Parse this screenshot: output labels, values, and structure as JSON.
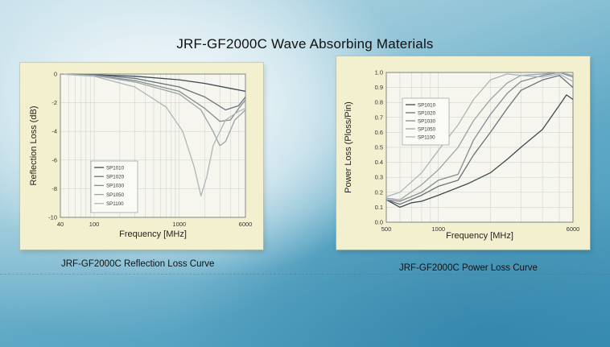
{
  "title": "JRF-GF2000C Wave Absorbing Materials",
  "captions": {
    "left": "JRF-GF2000C  Reflection Loss Curve",
    "right": "JRF-GF2000C Power Loss Curve"
  },
  "colors": {
    "panel_bg": "#f3f0cf",
    "plot_bg": "#f6f5ee",
    "grid": "#c9cfc9",
    "series": [
      "#3e4a52",
      "#68737a",
      "#838d93",
      "#9ba4a9",
      "#aeb6ba"
    ]
  },
  "chart_data": [
    {
      "type": "line",
      "title": "",
      "xlabel": "Frequency [MHz]",
      "ylabel": "Reflection Loss (dB)",
      "xscale": "log",
      "xlim": [
        40,
        6000
      ],
      "ylim": [
        -10,
        0
      ],
      "xticks": [
        {
          "value": 40,
          "label": "40"
        },
        {
          "value": 100,
          "label": "100"
        },
        {
          "value": 1000,
          "label": "1000"
        },
        {
          "value": 6000,
          "label": "6000"
        }
      ],
      "yticks": [
        0,
        -2,
        -4,
        -6,
        -8,
        -10
      ],
      "grid": true,
      "legend": {
        "position": "center-left",
        "entries": [
          "SP1010",
          "SP1020",
          "SP1030",
          "SP1050",
          "SP1100"
        ]
      },
      "series": [
        {
          "name": "SP1010",
          "points": [
            [
              40,
              0
            ],
            [
              100,
              -0.05
            ],
            [
              300,
              -0.15
            ],
            [
              1000,
              -0.4
            ],
            [
              2000,
              -0.65
            ],
            [
              4000,
              -1.0
            ],
            [
              6000,
              -1.2
            ]
          ]
        },
        {
          "name": "SP1020",
          "points": [
            [
              40,
              0
            ],
            [
              100,
              -0.05
            ],
            [
              300,
              -0.3
            ],
            [
              1000,
              -0.9
            ],
            [
              2000,
              -1.6
            ],
            [
              3500,
              -2.5
            ],
            [
              5000,
              -2.2
            ],
            [
              6000,
              -1.6
            ]
          ]
        },
        {
          "name": "SP1030",
          "points": [
            [
              40,
              0
            ],
            [
              100,
              -0.1
            ],
            [
              300,
              -0.45
            ],
            [
              1000,
              -1.2
            ],
            [
              2000,
              -2.4
            ],
            [
              3000,
              -3.3
            ],
            [
              4000,
              -3.2
            ],
            [
              5000,
              -2.4
            ],
            [
              6000,
              -1.8
            ]
          ]
        },
        {
          "name": "SP1050",
          "points": [
            [
              40,
              0
            ],
            [
              100,
              -0.1
            ],
            [
              300,
              -0.55
            ],
            [
              1000,
              -1.4
            ],
            [
              1800,
              -2.5
            ],
            [
              2500,
              -4.0
            ],
            [
              3000,
              -5.0
            ],
            [
              3500,
              -4.7
            ],
            [
              4500,
              -3.2
            ],
            [
              6000,
              -2.5
            ]
          ]
        },
        {
          "name": "SP1100",
          "points": [
            [
              40,
              0
            ],
            [
              100,
              -0.15
            ],
            [
              300,
              -0.9
            ],
            [
              700,
              -2.3
            ],
            [
              1100,
              -4.0
            ],
            [
              1500,
              -6.5
            ],
            [
              1800,
              -8.5
            ],
            [
              2100,
              -7.2
            ],
            [
              2500,
              -5.0
            ],
            [
              3500,
              -3.2
            ],
            [
              5000,
              -2.6
            ],
            [
              6000,
              -2.4
            ]
          ]
        }
      ]
    },
    {
      "type": "line",
      "title": "",
      "xlabel": "Frequency [MHz]",
      "ylabel": "Power Loss (Ploss/Pin)",
      "xscale": "log",
      "xlim": [
        500,
        6000
      ],
      "ylim": [
        0,
        1.0
      ],
      "xticks": [
        {
          "value": 500,
          "label": "500"
        },
        {
          "value": 1000,
          "label": "1000"
        },
        {
          "value": 6000,
          "label": "6000"
        }
      ],
      "yticks": [
        0,
        0.1,
        0.2,
        0.3,
        0.4,
        0.5,
        0.6,
        0.7,
        0.8,
        0.9,
        1.0
      ],
      "grid": true,
      "legend": {
        "position": "top-left",
        "entries": [
          "SP1010",
          "SP1020",
          "SP1030",
          "SP1050",
          "SP1100"
        ]
      },
      "series": [
        {
          "name": "SP1010",
          "points": [
            [
              500,
              0.15
            ],
            [
              600,
              0.1
            ],
            [
              700,
              0.13
            ],
            [
              800,
              0.14
            ],
            [
              1000,
              0.18
            ],
            [
              1500,
              0.26
            ],
            [
              2000,
              0.33
            ],
            [
              2500,
              0.42
            ],
            [
              3000,
              0.5
            ],
            [
              4000,
              0.62
            ],
            [
              5000,
              0.78
            ],
            [
              5500,
              0.85
            ],
            [
              6000,
              0.82
            ]
          ]
        },
        {
          "name": "SP1020",
          "points": [
            [
              500,
              0.15
            ],
            [
              600,
              0.12
            ],
            [
              800,
              0.18
            ],
            [
              1000,
              0.24
            ],
            [
              1300,
              0.28
            ],
            [
              1600,
              0.45
            ],
            [
              2000,
              0.6
            ],
            [
              2500,
              0.76
            ],
            [
              3000,
              0.88
            ],
            [
              4000,
              0.95
            ],
            [
              5000,
              0.98
            ],
            [
              6000,
              0.9
            ]
          ]
        },
        {
          "name": "SP1030",
          "points": [
            [
              500,
              0.15
            ],
            [
              600,
              0.14
            ],
            [
              800,
              0.2
            ],
            [
              1000,
              0.28
            ],
            [
              1300,
              0.32
            ],
            [
              1600,
              0.55
            ],
            [
              2000,
              0.72
            ],
            [
              2500,
              0.86
            ],
            [
              3000,
              0.94
            ],
            [
              4000,
              0.98
            ],
            [
              5000,
              1.0
            ],
            [
              6000,
              0.97
            ]
          ]
        },
        {
          "name": "SP1050",
          "points": [
            [
              500,
              0.16
            ],
            [
              600,
              0.15
            ],
            [
              800,
              0.25
            ],
            [
              1000,
              0.35
            ],
            [
              1300,
              0.5
            ],
            [
              1600,
              0.68
            ],
            [
              2000,
              0.82
            ],
            [
              2500,
              0.93
            ],
            [
              3000,
              0.98
            ],
            [
              4000,
              0.99
            ],
            [
              5000,
              1.0
            ],
            [
              6000,
              0.98
            ]
          ]
        },
        {
          "name": "SP1100",
          "points": [
            [
              500,
              0.17
            ],
            [
              600,
              0.2
            ],
            [
              800,
              0.33
            ],
            [
              1000,
              0.48
            ],
            [
              1300,
              0.65
            ],
            [
              1600,
              0.82
            ],
            [
              2000,
              0.95
            ],
            [
              2500,
              0.99
            ],
            [
              3000,
              0.98
            ],
            [
              4000,
              0.97
            ],
            [
              5000,
              0.99
            ],
            [
              6000,
              0.94
            ]
          ]
        }
      ]
    }
  ]
}
